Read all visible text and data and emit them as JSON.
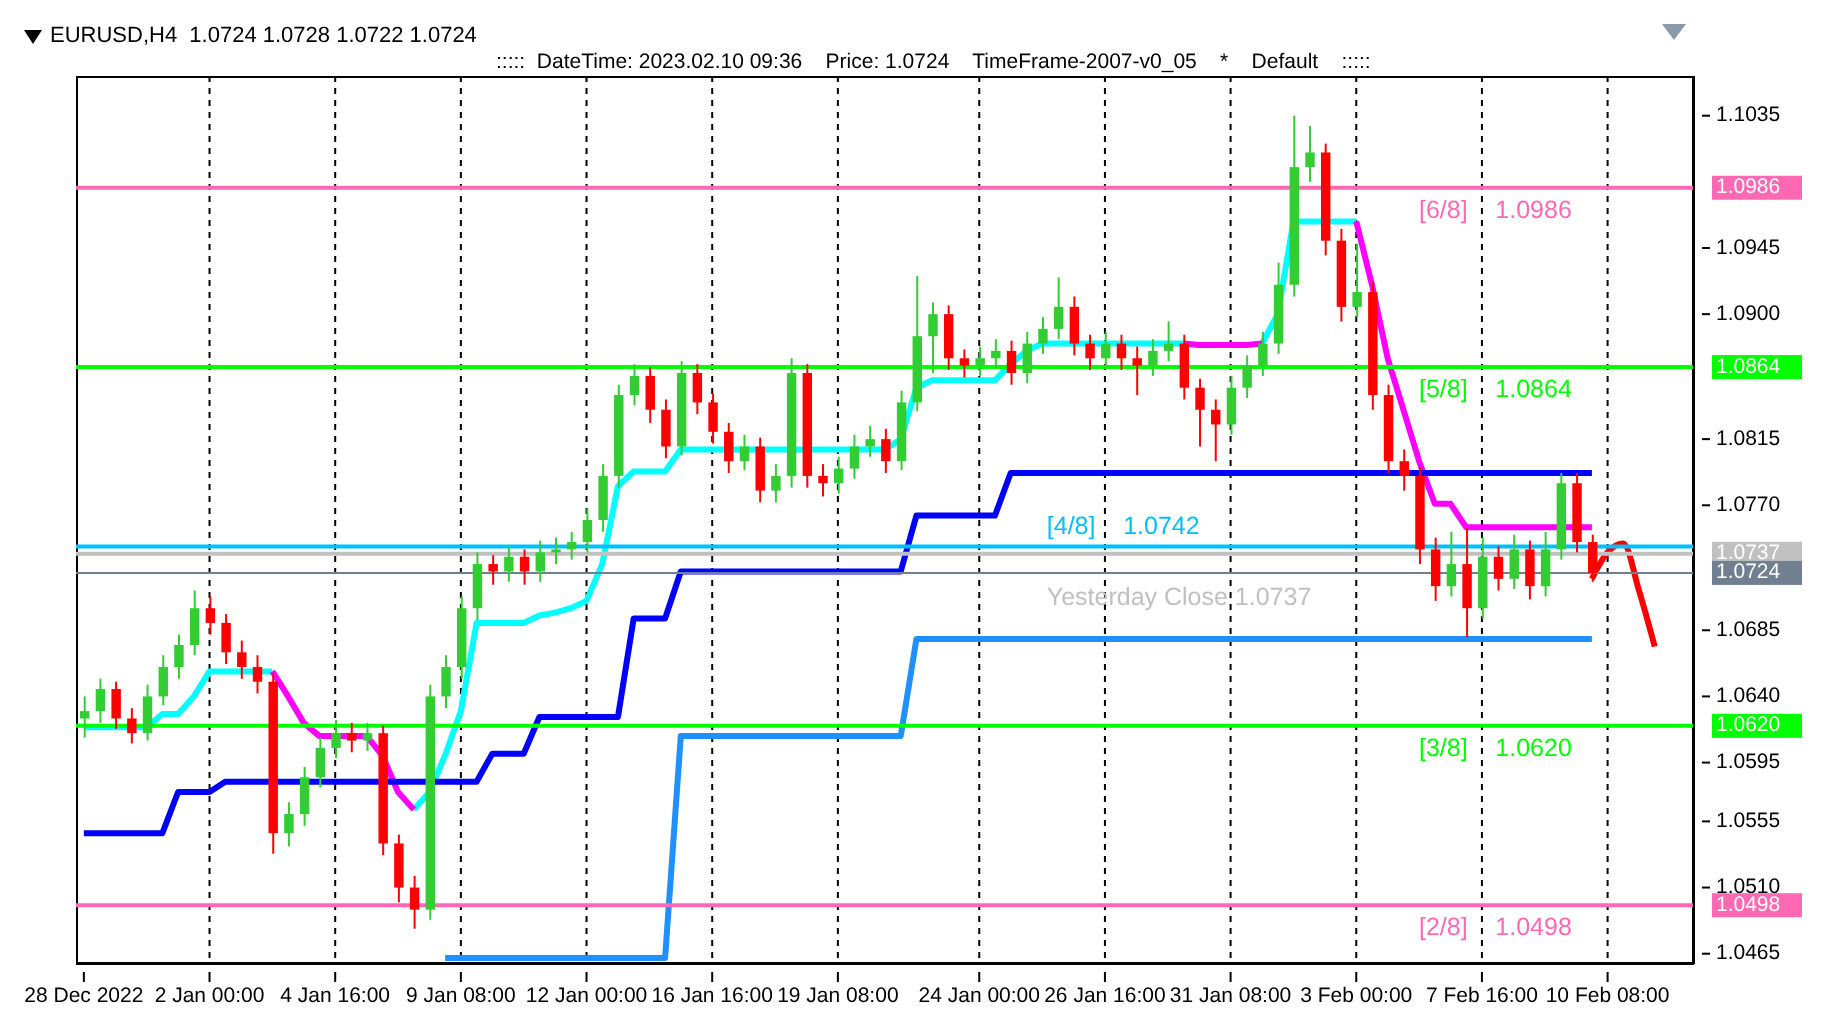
{
  "chart_data": {
    "type": "candlestick",
    "title": "EURUSD,H4  1.0724 1.0728 1.0722 1.0724",
    "subtitle": ":::::  DateTime: 2023.02.10 09:36    Price: 1.0724    TimeFrame-2007-v0_05    *    Default    :::::",
    "categories": [
      "28 Dec 2022",
      null,
      null,
      null,
      null,
      null,
      null,
      null,
      "2 Jan 00:00",
      null,
      null,
      null,
      null,
      null,
      null,
      null,
      "4 Jan 16:00",
      null,
      null,
      null,
      null,
      null,
      null,
      null,
      "9 Jan 08:00",
      null,
      null,
      null,
      null,
      null,
      null,
      null,
      "12 Jan 00:00",
      null,
      null,
      null,
      null,
      null,
      null,
      null,
      "16 Jan 16:00",
      null,
      null,
      null,
      null,
      null,
      null,
      null,
      "19 Jan 08:00",
      null,
      null,
      null,
      null,
      null,
      null,
      null,
      null,
      "24 Jan 00:00",
      null,
      null,
      null,
      null,
      null,
      null,
      null,
      "26 Jan 16:00",
      null,
      null,
      null,
      null,
      null,
      null,
      null,
      "31 Jan 08:00",
      null,
      null,
      null,
      null,
      null,
      null,
      null,
      "3 Feb 00:00",
      null,
      null,
      null,
      null,
      null,
      null,
      null,
      "7 Feb 16:00",
      null,
      null,
      null,
      null,
      null,
      null,
      null,
      "10 Feb 08:00",
      null,
      null,
      null,
      null,
      null
    ],
    "ohlc": [
      [
        1.0625,
        1.064,
        1.0612,
        1.063
      ],
      [
        1.063,
        1.0652,
        1.0622,
        1.0645
      ],
      [
        1.0645,
        1.065,
        1.0618,
        1.0625
      ],
      [
        1.0625,
        1.0632,
        1.0608,
        1.0615
      ],
      [
        1.0615,
        1.0648,
        1.061,
        1.064
      ],
      [
        1.064,
        1.0668,
        1.0634,
        1.066
      ],
      [
        1.066,
        1.0682,
        1.0652,
        1.0675
      ],
      [
        1.0675,
        1.0712,
        1.0668,
        1.07
      ],
      [
        1.07,
        1.0708,
        1.0682,
        1.069
      ],
      [
        1.069,
        1.0696,
        1.0662,
        1.067
      ],
      [
        1.067,
        1.0678,
        1.0652,
        1.066
      ],
      [
        1.066,
        1.0668,
        1.0642,
        1.065
      ],
      [
        1.065,
        1.0656,
        1.0533,
        1.0547
      ],
      [
        1.0547,
        1.0568,
        1.0538,
        1.056
      ],
      [
        1.056,
        1.0592,
        1.0552,
        1.0585
      ],
      [
        1.0585,
        1.0612,
        1.0578,
        1.0605
      ],
      [
        1.0605,
        1.0624,
        1.0598,
        1.0615
      ],
      [
        1.0615,
        1.0622,
        1.0602,
        1.061
      ],
      [
        1.061,
        1.0622,
        1.0603,
        1.0615
      ],
      [
        1.0615,
        1.062,
        1.0532,
        1.054
      ],
      [
        1.054,
        1.0546,
        1.05,
        1.051
      ],
      [
        1.051,
        1.0518,
        1.0482,
        1.0495
      ],
      [
        1.0495,
        1.0648,
        1.0488,
        1.064
      ],
      [
        1.064,
        1.0668,
        1.0632,
        1.066
      ],
      [
        1.066,
        1.0708,
        1.0652,
        1.07
      ],
      [
        1.07,
        1.0738,
        1.0692,
        1.073
      ],
      [
        1.073,
        1.0736,
        1.0716,
        1.0725
      ],
      [
        1.0725,
        1.0742,
        1.0718,
        1.0735
      ],
      [
        1.0735,
        1.074,
        1.0716,
        1.0725
      ],
      [
        1.0725,
        1.0746,
        1.0718,
        1.0738
      ],
      [
        1.0738,
        1.0748,
        1.073,
        1.074
      ],
      [
        1.074,
        1.0752,
        1.0733,
        1.0745
      ],
      [
        1.0745,
        1.0768,
        1.0738,
        1.076
      ],
      [
        1.076,
        1.0798,
        1.0752,
        1.079
      ],
      [
        1.079,
        1.0852,
        1.0782,
        1.0845
      ],
      [
        1.0845,
        1.0866,
        1.0838,
        1.0858
      ],
      [
        1.0858,
        1.0864,
        1.0826,
        1.0835
      ],
      [
        1.0835,
        1.0842,
        1.0802,
        1.081
      ],
      [
        1.081,
        1.0868,
        1.0804,
        1.086
      ],
      [
        1.086,
        1.0866,
        1.0832,
        1.084
      ],
      [
        1.084,
        1.0846,
        1.0812,
        1.082
      ],
      [
        1.082,
        1.0826,
        1.0792,
        1.08
      ],
      [
        1.08,
        1.0818,
        1.0794,
        1.081
      ],
      [
        1.081,
        1.0816,
        1.0772,
        1.078
      ],
      [
        1.078,
        1.0798,
        1.0772,
        1.079
      ],
      [
        1.079,
        1.087,
        1.0782,
        1.086
      ],
      [
        1.086,
        1.0866,
        1.0782,
        1.079
      ],
      [
        1.079,
        1.0798,
        1.0776,
        1.0785
      ],
      [
        1.0785,
        1.0803,
        1.0778,
        1.0795
      ],
      [
        1.0795,
        1.0818,
        1.0788,
        1.081
      ],
      [
        1.081,
        1.0824,
        1.0803,
        1.0815
      ],
      [
        1.0815,
        1.0822,
        1.0792,
        1.08
      ],
      [
        1.08,
        1.0848,
        1.0794,
        1.084
      ],
      [
        1.084,
        1.0926,
        1.0834,
        1.0885
      ],
      [
        1.0885,
        1.0908,
        1.086,
        1.09
      ],
      [
        1.09,
        1.0906,
        1.0862,
        1.087
      ],
      [
        1.087,
        1.0876,
        1.0857,
        1.0865
      ],
      [
        1.0865,
        1.0878,
        1.0858,
        1.087
      ],
      [
        1.087,
        1.0883,
        1.0863,
        1.0875
      ],
      [
        1.0875,
        1.0882,
        1.0852,
        1.086
      ],
      [
        1.086,
        1.0888,
        1.0853,
        1.088
      ],
      [
        1.088,
        1.0898,
        1.0873,
        1.089
      ],
      [
        1.089,
        1.0925,
        1.0883,
        1.0905
      ],
      [
        1.0905,
        1.0912,
        1.0872,
        1.088
      ],
      [
        1.088,
        1.0886,
        1.0862,
        1.087
      ],
      [
        1.087,
        1.0888,
        1.0863,
        1.088
      ],
      [
        1.088,
        1.0886,
        1.0862,
        1.087
      ],
      [
        1.087,
        1.0878,
        1.0845,
        1.0865
      ],
      [
        1.0865,
        1.0883,
        1.0858,
        1.0875
      ],
      [
        1.0875,
        1.0895,
        1.0868,
        1.088
      ],
      [
        1.088,
        1.0886,
        1.0842,
        1.085
      ],
      [
        1.085,
        1.0856,
        1.081,
        1.0835
      ],
      [
        1.0835,
        1.0842,
        1.08,
        1.0825
      ],
      [
        1.0825,
        1.0858,
        1.0818,
        1.085
      ],
      [
        1.085,
        1.0872,
        1.0843,
        1.0865
      ],
      [
        1.0865,
        1.0888,
        1.0858,
        1.088
      ],
      [
        1.088,
        1.0935,
        1.0873,
        1.092
      ],
      [
        1.092,
        1.1035,
        1.0912,
        1.1
      ],
      [
        1.1,
        1.1028,
        1.099,
        1.101
      ],
      [
        1.101,
        1.1016,
        1.094,
        1.095
      ],
      [
        1.095,
        1.0958,
        1.0895,
        1.0905
      ],
      [
        1.0905,
        1.0948,
        1.0898,
        1.0915
      ],
      [
        1.0915,
        1.0922,
        1.0835,
        1.0845
      ],
      [
        1.0845,
        1.0852,
        1.0792,
        1.08
      ],
      [
        1.08,
        1.0808,
        1.078,
        1.079
      ],
      [
        1.079,
        1.0796,
        1.073,
        1.074
      ],
      [
        1.074,
        1.0748,
        1.0705,
        1.0715
      ],
      [
        1.0715,
        1.0752,
        1.0708,
        1.073
      ],
      [
        1.073,
        1.0755,
        1.068,
        1.07
      ],
      [
        1.07,
        1.0748,
        1.0693,
        1.0735
      ],
      [
        1.0735,
        1.0742,
        1.0712,
        1.072
      ],
      [
        1.072,
        1.075,
        1.0713,
        1.074
      ],
      [
        1.074,
        1.0746,
        1.0706,
        1.0715
      ],
      [
        1.0715,
        1.0752,
        1.0708,
        1.074
      ],
      [
        1.074,
        1.0792,
        1.0733,
        1.0785
      ],
      [
        1.0785,
        1.0792,
        1.0738,
        1.0745
      ],
      [
        1.0745,
        1.075,
        1.0718,
        1.0724
      ],
      null,
      null,
      null,
      null,
      null,
      null
    ],
    "series": [
      {
        "type": "line",
        "color": "#00ffff",
        "values": [
          1.0619,
          1.0619,
          1.0619,
          1.0619,
          1.0619,
          1.0628,
          1.0628,
          1.064,
          1.0657,
          1.0657,
          1.0657,
          1.0657,
          1.0657,
          null,
          null,
          null,
          null,
          null,
          null,
          null,
          null,
          1.0563,
          1.0575,
          1.06,
          1.063,
          1.069,
          1.069,
          1.069,
          1.069,
          1.0695,
          1.0697,
          1.07,
          1.0705,
          1.073,
          1.0783,
          1.0793,
          1.0793,
          1.0793,
          1.0808,
          1.0808,
          1.0808,
          1.0808,
          1.0808,
          1.0808,
          1.0808,
          1.0808,
          1.0808,
          1.0808,
          1.0808,
          1.0808,
          1.0808,
          1.0808,
          1.0815,
          1.085,
          1.0855,
          1.0855,
          1.0855,
          1.0855,
          1.0855,
          1.0866,
          1.0875,
          1.088,
          1.088,
          1.088,
          1.088,
          1.088,
          1.088,
          1.088,
          1.088,
          1.088,
          1.088,
          null,
          null,
          null,
          null,
          1.088,
          1.09,
          1.0963,
          1.0963,
          1.0963,
          1.0963,
          1.0963,
          null,
          null,
          null,
          null,
          null,
          null,
          null,
          null,
          null,
          null,
          null,
          null,
          null,
          null,
          null,
          null,
          null,
          null,
          null,
          null,
          null
        ]
      },
      {
        "type": "line",
        "color": "#ff00ff",
        "values": [
          null,
          null,
          null,
          null,
          null,
          null,
          null,
          null,
          null,
          null,
          null,
          null,
          1.0657,
          1.064,
          1.0622,
          1.0613,
          1.0613,
          1.0613,
          1.0613,
          1.06,
          1.0575,
          1.0563,
          null,
          null,
          null,
          null,
          null,
          null,
          null,
          null,
          null,
          null,
          null,
          null,
          null,
          null,
          null,
          null,
          null,
          null,
          null,
          null,
          null,
          null,
          null,
          null,
          null,
          null,
          null,
          null,
          null,
          null,
          null,
          null,
          null,
          null,
          null,
          null,
          null,
          null,
          null,
          null,
          null,
          null,
          null,
          null,
          null,
          null,
          null,
          null,
          1.088,
          1.0879,
          1.0879,
          1.0879,
          1.0879,
          1.088,
          null,
          null,
          null,
          null,
          null,
          1.0963,
          1.092,
          1.087,
          1.0835,
          1.08,
          1.0771,
          1.0771,
          1.0755,
          1.0755,
          1.0755,
          1.0755,
          1.0755,
          1.0755,
          1.0755,
          1.0755,
          1.0755,
          null,
          null,
          null,
          null,
          null,
          null
        ]
      },
      {
        "type": "line",
        "color": "#0000ff",
        "values": [
          1.0547,
          1.0547,
          1.0547,
          1.0547,
          1.0547,
          1.0547,
          1.0575,
          1.0575,
          1.0575,
          1.0582,
          1.0582,
          1.0582,
          1.0582,
          1.0582,
          1.0582,
          1.0582,
          1.0582,
          1.0582,
          1.0582,
          1.0582,
          1.0582,
          1.0582,
          1.0582,
          1.0582,
          1.0582,
          1.0582,
          1.0601,
          1.0601,
          1.0601,
          1.0626,
          1.0626,
          1.0626,
          1.0626,
          1.0626,
          1.0626,
          1.0693,
          1.0693,
          1.0693,
          1.0725,
          1.0725,
          1.0725,
          1.0725,
          1.0725,
          1.0725,
          1.0725,
          1.0725,
          1.0725,
          1.0725,
          1.0725,
          1.0725,
          1.0725,
          1.0725,
          1.0725,
          1.0763,
          1.0763,
          1.0763,
          1.0763,
          1.0763,
          1.0763,
          1.0792,
          1.0792,
          1.0792,
          1.0792,
          1.0792,
          1.0792,
          1.0792,
          1.0792,
          1.0792,
          1.0792,
          1.0792,
          1.0792,
          1.0792,
          1.0792,
          1.0792,
          1.0792,
          1.0792,
          1.0792,
          1.0792,
          1.0792,
          1.0792,
          1.0792,
          1.0792,
          1.0792,
          1.0792,
          1.0792,
          1.0792,
          1.0792,
          1.0792,
          1.0792,
          1.0792,
          1.0792,
          1.0792,
          1.0792,
          1.0792,
          1.0792,
          1.0792,
          1.0792,
          null,
          null,
          null,
          null,
          null,
          null
        ]
      },
      {
        "type": "line",
        "color": "#1e90ff",
        "values": [
          null,
          null,
          null,
          null,
          null,
          null,
          null,
          null,
          null,
          null,
          null,
          null,
          null,
          null,
          null,
          null,
          null,
          null,
          null,
          null,
          null,
          null,
          null,
          1.0462,
          1.0462,
          1.0462,
          1.0462,
          1.0462,
          1.0462,
          1.0462,
          1.0462,
          1.0462,
          1.0462,
          1.0462,
          1.0462,
          1.0462,
          1.0462,
          1.0462,
          1.0613,
          1.0613,
          1.0613,
          1.0613,
          1.0613,
          1.0613,
          1.0613,
          1.0613,
          1.0613,
          1.0613,
          1.0613,
          1.0613,
          1.0613,
          1.0613,
          1.0613,
          1.0679,
          1.0679,
          1.0679,
          1.0679,
          1.0679,
          1.0679,
          1.0679,
          1.0679,
          1.0679,
          1.0679,
          1.0679,
          1.0679,
          1.0679,
          1.0679,
          1.0679,
          1.0679,
          1.0679,
          1.0679,
          1.0679,
          1.0679,
          1.0679,
          1.0679,
          1.0679,
          1.0679,
          1.0679,
          1.0679,
          1.0679,
          1.0679,
          1.0679,
          1.0679,
          1.0679,
          1.0679,
          1.0679,
          1.0679,
          1.0679,
          1.0679,
          1.0679,
          1.0679,
          1.0679,
          1.0679,
          1.0679,
          1.0679,
          1.0679,
          1.0679,
          null,
          null,
          null,
          null,
          null,
          null
        ]
      },
      {
        "type": "line",
        "color": "#ff0000",
        "values": [
          null,
          null,
          null,
          null,
          null,
          null,
          null,
          null,
          null,
          null,
          null,
          null,
          null,
          null,
          null,
          null,
          null,
          null,
          null,
          null,
          null,
          null,
          null,
          null,
          null,
          null,
          null,
          null,
          null,
          null,
          null,
          null,
          null,
          null,
          null,
          null,
          null,
          null,
          null,
          null,
          null,
          null,
          null,
          null,
          null,
          null,
          null,
          null,
          null,
          null,
          null,
          null,
          null,
          null,
          null,
          null,
          null,
          null,
          null,
          null,
          null,
          null,
          null,
          null,
          null,
          null,
          null,
          null,
          null,
          null,
          null,
          null,
          null,
          null,
          null,
          null,
          null,
          null,
          null,
          null,
          null,
          null,
          null,
          null,
          null,
          null,
          null,
          null,
          null,
          null,
          null,
          null,
          null,
          null,
          null,
          null,
          1.072,
          1.0738,
          1.0744,
          1.0712,
          1.0674,
          null,
          null
        ]
      }
    ],
    "ylim": [
      1.0458,
      1.1062
    ],
    "yticks": [
      1.1035,
      1.0986,
      1.0945,
      {
        "value": 1.09,
        "label": "1.0900"
      },
      1.0864,
      1.0815,
      {
        "value": 1.077,
        "label": "1.0770"
      },
      1.0737,
      1.0724,
      1.0685,
      {
        "value": 1.064,
        "label": "1.0640"
      },
      {
        "value": 1.062,
        "label": "1.0620"
      },
      1.0595,
      1.0555,
      {
        "value": 1.051,
        "label": "1.0510"
      },
      1.0498,
      1.0465
    ],
    "ref_lines": [
      {
        "axis": "y",
        "value": 1.0986,
        "label": "[6/8]    1.0986",
        "color": "#ff69b4"
      },
      {
        "axis": "y",
        "value": 1.0864,
        "label": "[5/8]    1.0864",
        "color": "#00ff00"
      },
      {
        "axis": "y",
        "value": 1.0742,
        "label": "[4/8]    1.0742",
        "color": "#00bfff"
      },
      {
        "axis": "y",
        "value": 1.0737,
        "label": "Yesterday Close 1.0737",
        "color": "#c0c0c0"
      },
      {
        "axis": "y",
        "value": 1.0724,
        "color": "#708090"
      },
      {
        "axis": "y",
        "value": 1.062,
        "label": "[3/8]    1.0620",
        "color": "#00ff00"
      },
      {
        "axis": "y",
        "value": 1.0498,
        "label": "[2/8]    1.0498",
        "color": "#ff69b4"
      }
    ],
    "grid": "x"
  }
}
